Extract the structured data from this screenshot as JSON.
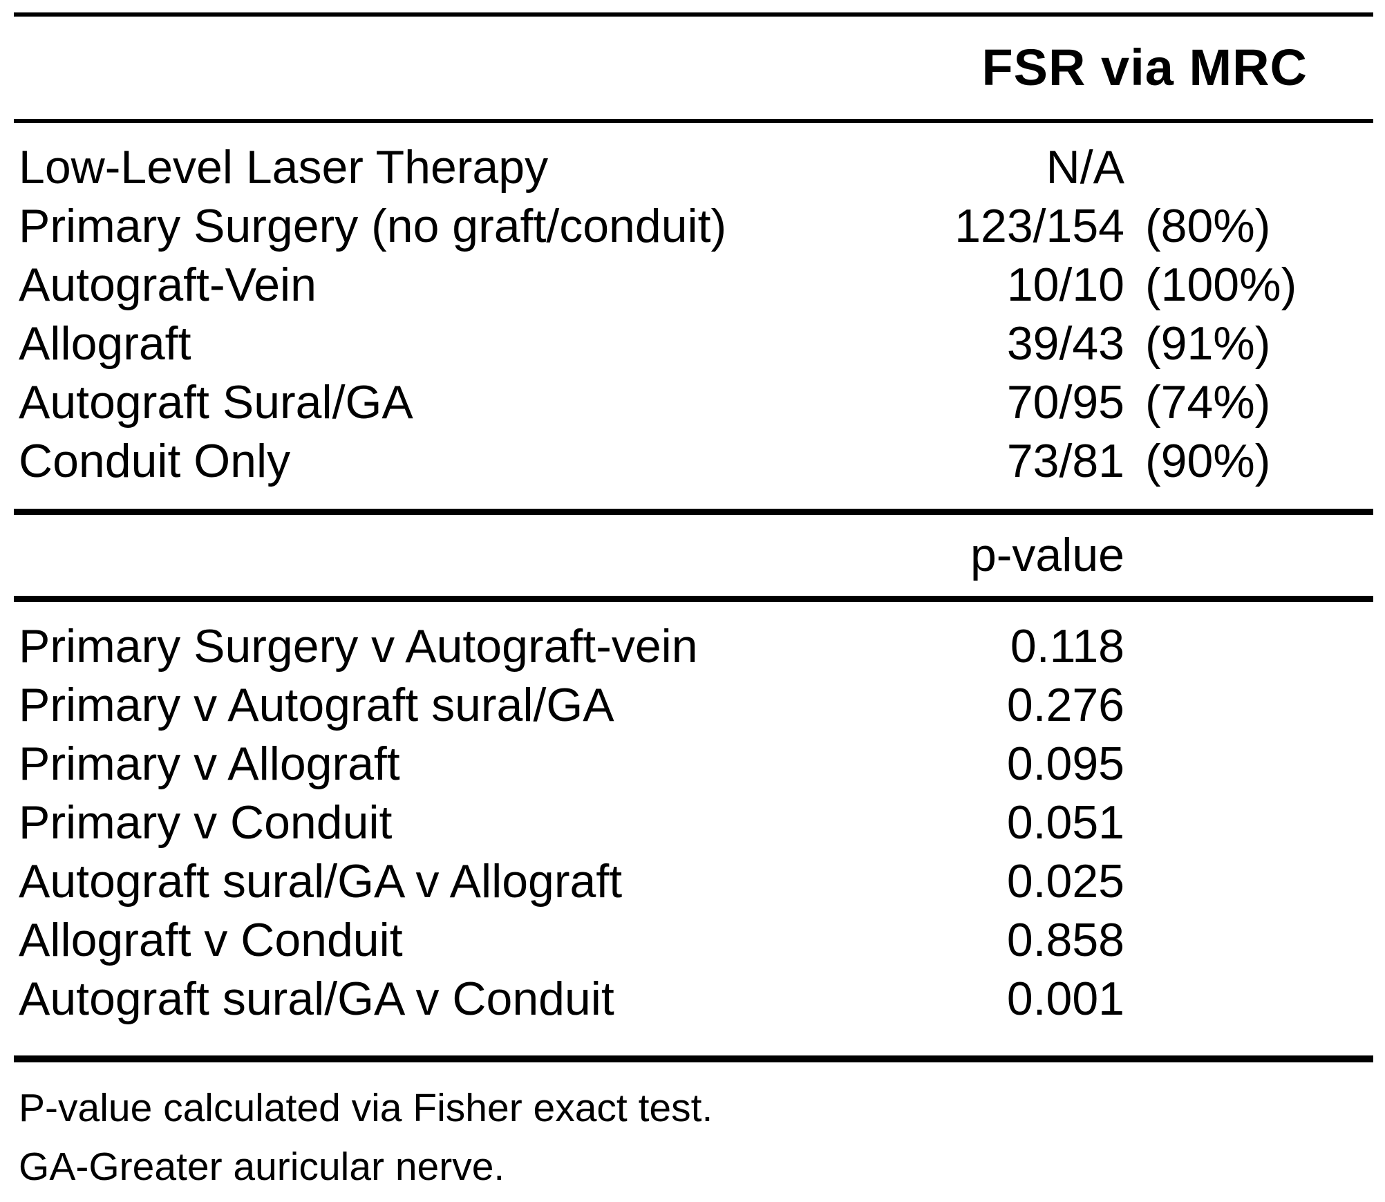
{
  "table": {
    "section1": {
      "header": "FSR via MRC",
      "rows": [
        {
          "label": "Low-Level Laser Therapy",
          "num": "N/A",
          "pct": ""
        },
        {
          "label": "Primary Surgery (no graft/conduit)",
          "num": "123/154",
          "pct": "(80%)"
        },
        {
          "label": "Autograft-Vein",
          "num": "10/10",
          "pct": "(100%)"
        },
        {
          "label": "Allograft",
          "num": "39/43",
          "pct": "(91%)"
        },
        {
          "label": "Autograft Sural/GA",
          "num": "70/95",
          "pct": "(74%)"
        },
        {
          "label": "Conduit Only",
          "num": "73/81",
          "pct": "(90%)"
        }
      ]
    },
    "section2": {
      "header": "p-value",
      "rows": [
        {
          "label": "Primary Surgery v Autograft-vein",
          "value": "0.118"
        },
        {
          "label": "Primary v Autograft sural/GA",
          "value": "0.276"
        },
        {
          "label": "Primary v Allograft",
          "value": "0.095"
        },
        {
          "label": "Primary v Conduit",
          "value": "0.051"
        },
        {
          "label": "Autograft sural/GA v Allograft",
          "value": "0.025"
        },
        {
          "label": "Allograft v Conduit",
          "value": "0.858"
        },
        {
          "label": "Autograft sural/GA v Conduit",
          "value": "0.001"
        }
      ]
    },
    "footnotes": [
      "P-value calculated via Fisher exact test.",
      "GA-Greater auricular nerve."
    ]
  }
}
